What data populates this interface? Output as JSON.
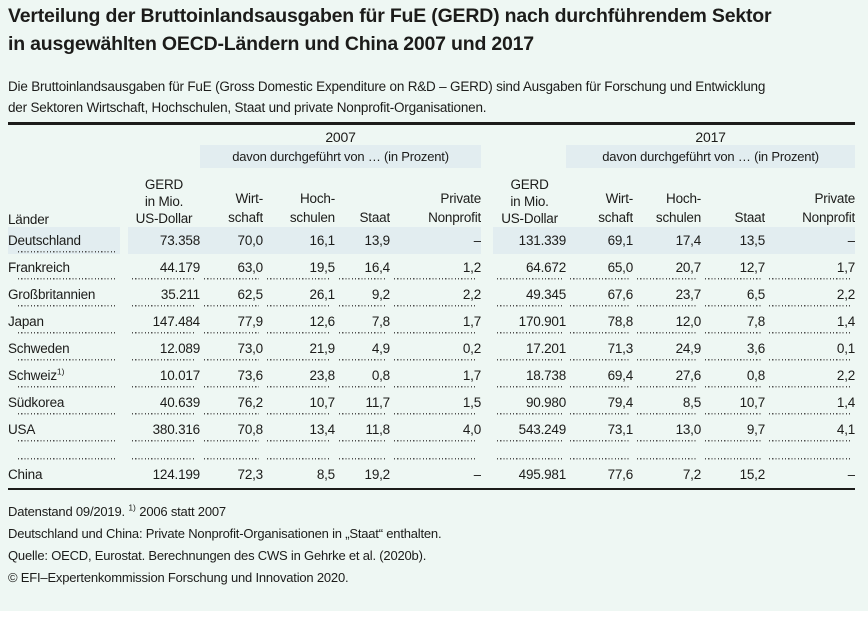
{
  "colors": {
    "background": "#eef7f3",
    "highlight": "#e2edf0",
    "text": "#1c1c1a"
  },
  "title": {
    "line1": "Verteilung der Bruttoinlandsausgaben für FuE (GERD) nach durchführendem Sektor",
    "line2": "in ausgewählten OECD-Ländern und China 2007 und 2017"
  },
  "intro": {
    "line1": "Die Bruttoinlandsausgaben für FuE (Gross Domestic Expenditure on R&D – GERD) sind Ausgaben für Forschung und Entwicklung",
    "line2": "der Sektoren Wirtschaft, Hochschulen, Staat und private Nonprofit-Organisationen."
  },
  "table": {
    "country_header": "Länder",
    "years": [
      {
        "year": "2007",
        "davon": "davon durchgeführt von … (in Prozent)"
      },
      {
        "year": "2017",
        "davon": "davon durchgeführt von … (in Prozent)"
      }
    ],
    "gerd_header": {
      "l1": "GERD",
      "l2": "in Mio.",
      "l3": "US-Dollar"
    },
    "col_headers": {
      "wirt1": "Wirt-",
      "wirt2": "schaft",
      "hoch1": "Hoch-",
      "hoch2": "schulen",
      "staat": "Staat",
      "pnp1": "Private",
      "pnp2": "Nonprofit"
    },
    "rows": [
      {
        "country": "Deutschland",
        "highlight": true,
        "sep": "label",
        "y2007": [
          "73.358",
          "70,0",
          "16,1",
          "13,9",
          "–"
        ],
        "y2017": [
          "131.339",
          "69,1",
          "17,4",
          "13,5",
          "–"
        ]
      },
      {
        "country": "Frankreich",
        "sep": "all",
        "y2007": [
          "44.179",
          "63,0",
          "19,5",
          "16,4",
          "1,2"
        ],
        "y2017": [
          "64.672",
          "65,0",
          "20,7",
          "12,7",
          "1,7"
        ]
      },
      {
        "country": "Großbritannien",
        "sep": "all",
        "y2007": [
          "35.211",
          "62,5",
          "26,1",
          "9,2",
          "2,2"
        ],
        "y2017": [
          "49.345",
          "67,6",
          "23,7",
          "6,5",
          "2,2"
        ]
      },
      {
        "country": "Japan",
        "sep": "all",
        "y2007": [
          "147.484",
          "77,9",
          "12,6",
          "7,8",
          "1,7"
        ],
        "y2017": [
          "170.901",
          "78,8",
          "12,0",
          "7,8",
          "1,4"
        ]
      },
      {
        "country": "Schweden",
        "sep": "all",
        "y2007": [
          "12.089",
          "73,0",
          "21,9",
          "4,9",
          "0,2"
        ],
        "y2017": [
          "17.201",
          "71,3",
          "24,9",
          "3,6",
          "0,1"
        ]
      },
      {
        "country": "Schweiz",
        "marker": "1)",
        "sep": "all",
        "y2007": [
          "10.017",
          "73,6",
          "23,8",
          "0,8",
          "1,7"
        ],
        "y2017": [
          "18.738",
          "69,4",
          "27,6",
          "0,8",
          "2,2"
        ]
      },
      {
        "country": "Südkorea",
        "sep": "all",
        "y2007": [
          "40.639",
          "76,2",
          "10,7",
          "11,7",
          "1,5"
        ],
        "y2017": [
          "90.980",
          "79,4",
          "8,5",
          "10,7",
          "1,4"
        ]
      },
      {
        "country": "USA",
        "sep": "all",
        "y2007": [
          "380.316",
          "70,8",
          "13,4",
          "11,8",
          "4,0"
        ],
        "y2017": [
          "543.249",
          "73,1",
          "13,0",
          "9,7",
          "4,1"
        ]
      },
      {
        "country": "",
        "spacer": true,
        "sep": "all",
        "y2007": [
          "",
          "",
          "",
          "",
          ""
        ],
        "y2017": [
          "",
          "",
          "",
          "",
          ""
        ]
      },
      {
        "country": "China",
        "sep": "none",
        "y2007": [
          "124.199",
          "72,3",
          "8,5",
          "19,2",
          "–"
        ],
        "y2017": [
          "495.981",
          "77,6",
          "7,2",
          "15,2",
          "–"
        ]
      }
    ]
  },
  "footnotes": [
    {
      "pre": "Datenstand 09/2019. ",
      "sup": "1)",
      "post": " 2006 statt 2007"
    },
    {
      "pre": "Deutschland und China: Private Nonprofit-Organisationen in „Staat“ enthalten."
    },
    {
      "pre": "Quelle: OECD, Eurostat. Berechnungen des CWS in Gehrke et al. (2020b)."
    },
    {
      "pre": "© EFI–Expertenkommission Forschung und Innovation 2020."
    }
  ]
}
